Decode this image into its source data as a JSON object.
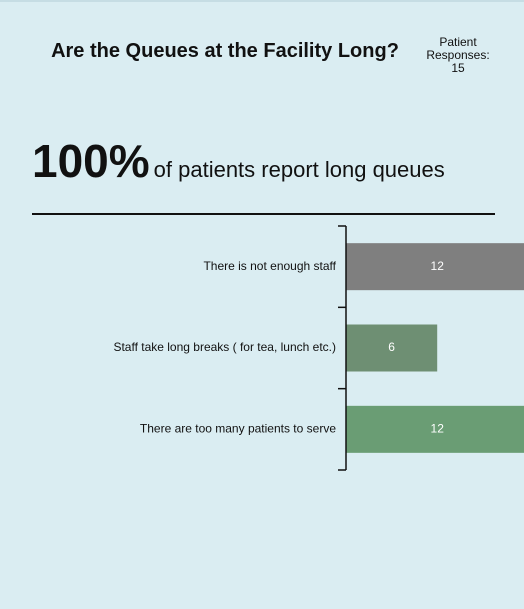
{
  "header": {
    "title": "Are the Queues at the Facility Long?",
    "responses_label": "Patient Responses:",
    "responses_count": 15
  },
  "headline": {
    "value": "100%",
    "text": "of patients report long queues"
  },
  "chart_data": {
    "type": "bar",
    "orientation": "horizontal",
    "categories": [
      "There is not enough staff",
      "Staff take long breaks ( for tea, lunch etc.)",
      "There are too many patients to serve"
    ],
    "series": [
      {
        "values": [
          12,
          6,
          12
        ],
        "colors": [
          "#7f7f7f",
          "#6e8f73",
          "#6a9d74"
        ]
      }
    ]
  }
}
